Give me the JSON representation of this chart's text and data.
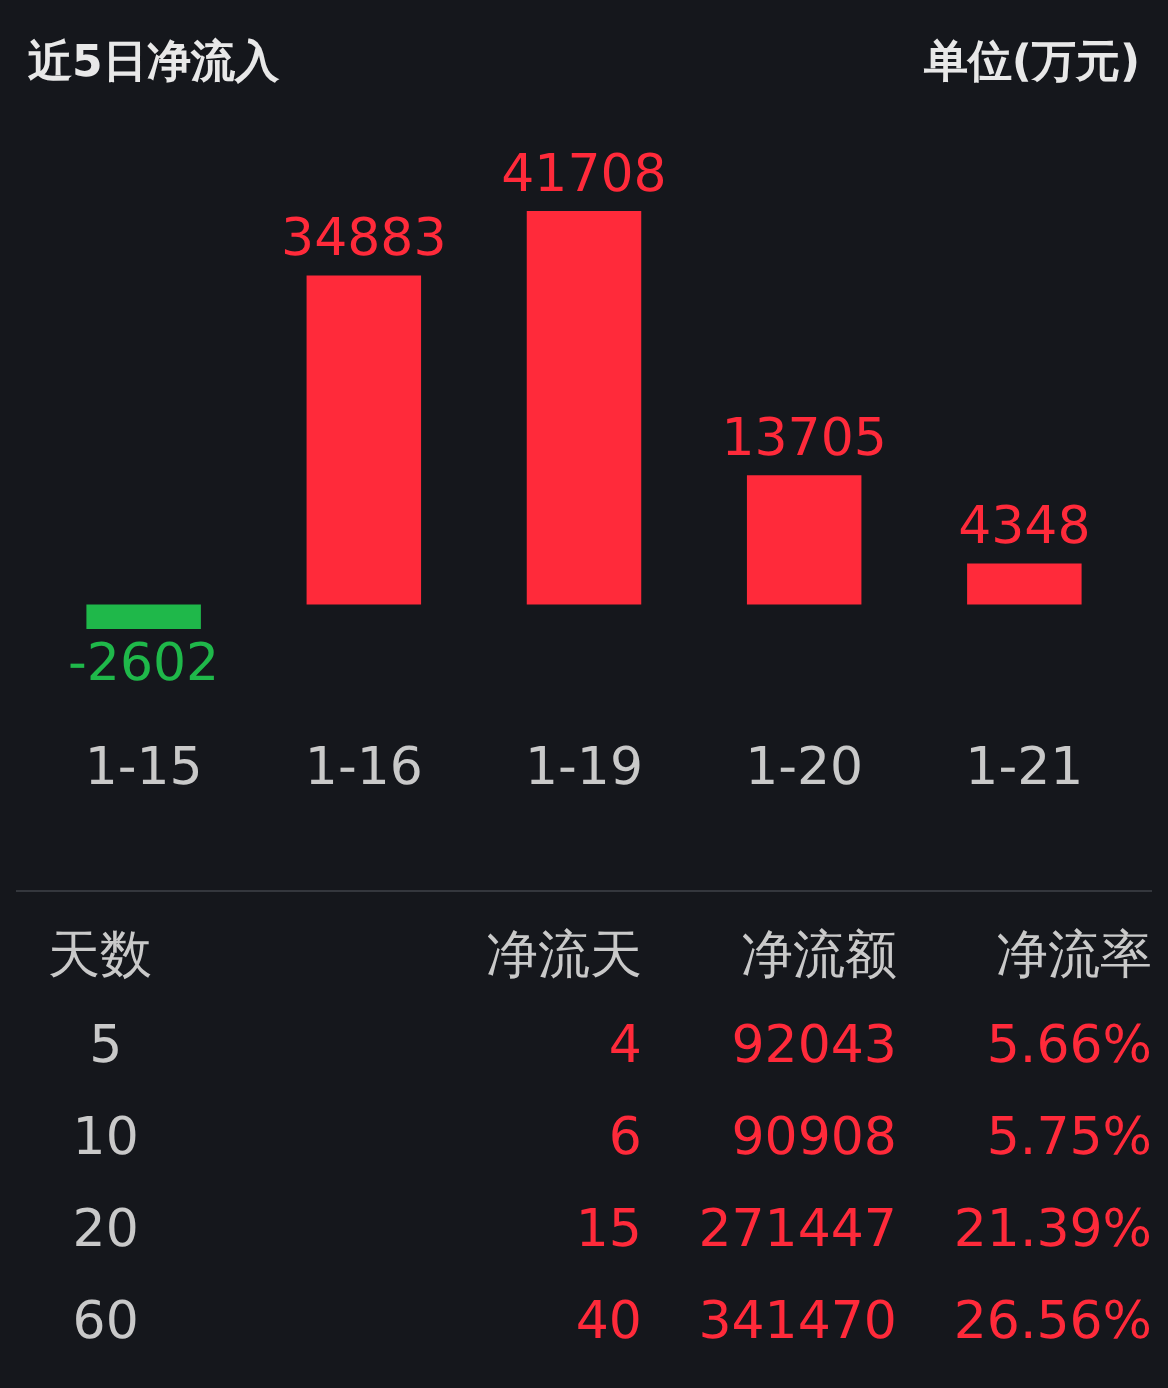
{
  "chart_data": [
    {
      "type": "bar",
      "title": "近5日净流入",
      "subtitle": "单位(万元)",
      "categories": [
        "1-15",
        "1-16",
        "1-19",
        "1-20",
        "1-21"
      ],
      "values": [
        -2602,
        34883,
        41708,
        13705,
        4348
      ],
      "colors": [
        "#1fb84a",
        "#ff2a3a",
        "#ff2a3a",
        "#ff2a3a",
        "#ff2a3a"
      ],
      "data_labels": true,
      "legend": false
    },
    {
      "type": "other",
      "annotations": [
        "天数",
        "净流天",
        "净流额",
        "净流率",
        "5",
        "4",
        "92043",
        "5.66%",
        "10",
        "6",
        "90908",
        "5.75%",
        "20",
        "15",
        "271447",
        "21.39%",
        "60",
        "40",
        "341470",
        "26.56%"
      ]
    }
  ]
}
